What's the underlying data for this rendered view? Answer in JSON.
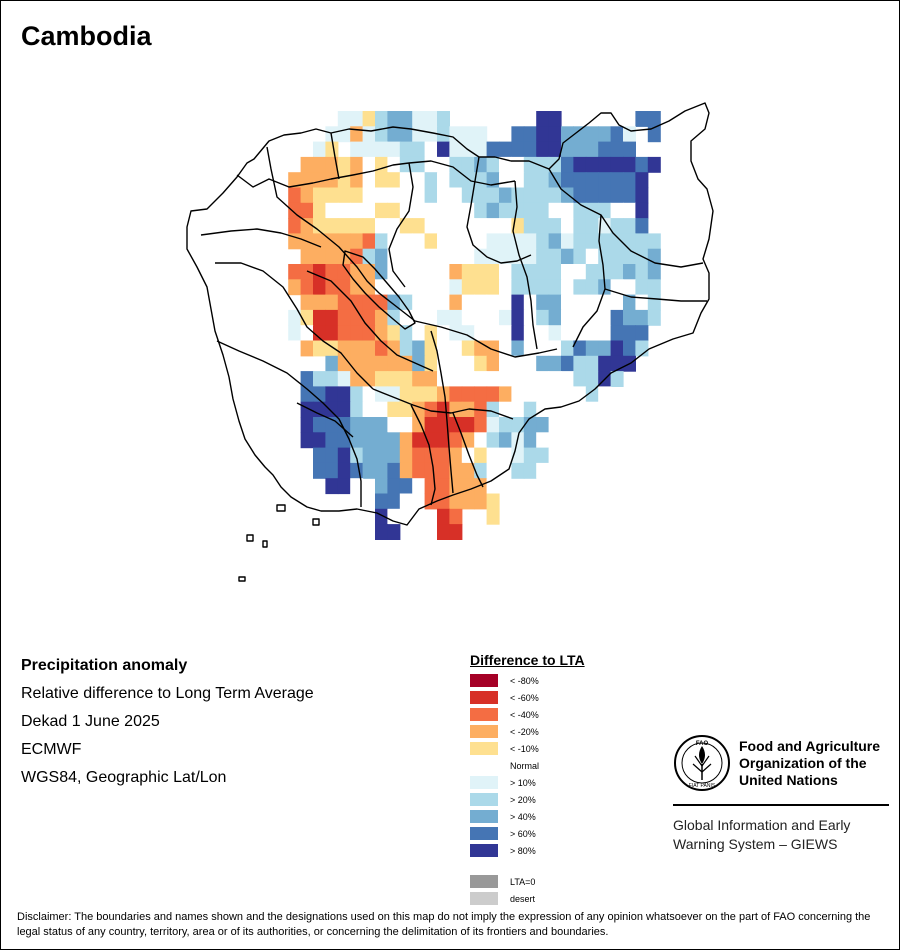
{
  "title": "Cambodia",
  "info": {
    "heading": "Precipitation anomaly",
    "line1": "Relative difference to Long Term Average",
    "line2": "Dekad 1 June 2025",
    "line3": "ECMWF",
    "line4": "WGS84, Geographic Lat/Lon"
  },
  "legend": {
    "title": "Difference to LTA",
    "items": [
      {
        "label": "< -80%",
        "color": "#a50026"
      },
      {
        "label": "< -60%",
        "color": "#d73027"
      },
      {
        "label": "< -40%",
        "color": "#f46d43"
      },
      {
        "label": "< -20%",
        "color": "#fdae61"
      },
      {
        "label": "< -10%",
        "color": "#fee090"
      },
      {
        "label": "Normal",
        "color": "#ffffff"
      },
      {
        "label": "> 10%",
        "color": "#e0f3f8"
      },
      {
        "label": "> 20%",
        "color": "#abd9e9"
      },
      {
        "label": "> 40%",
        "color": "#74add1"
      },
      {
        "label": "> 60%",
        "color": "#4575b4"
      },
      {
        "label": "> 80%",
        "color": "#313695"
      }
    ],
    "extra": [
      {
        "label": "LTA=0",
        "color": "#999999"
      },
      {
        "label": "desert",
        "color": "#cccccc"
      }
    ]
  },
  "fao": {
    "org_line1": "Food and Agriculture",
    "org_line2": "Organization of the",
    "org_line3": "United Nations",
    "giews_line1": "Global Information and Early",
    "giews_line2": "Warning System – GIEWS",
    "logo_letters": "FAO",
    "logo_motto": "FIAT PANIS"
  },
  "disclaimer": "Disclaimer: The boundaries and names shown and the designations used on this map do not imply the expression of any opinion whatsoever on the part of FAO concerning the legal status of any country, territory, area or of its authorities, or concerning the delimitation of its frontiers and boundaries.",
  "map_legend_codes": "A=< -80% B=< -60% C=< -40% D=< -20% E=< -10% N=Normal F=> 10% G=> 20% H=> 40% I=> 60% J=> 80%",
  "grid": [
    "............FFEGHHFFG.......JJ......II",
    "...........FFDFGHHFFGFFF..IIJJHHHHIF.I",
    "..........FE.FFFFGGNJFFFIIIIJJHHHIII..",
    ".........DDDEDNENGGNNGGHGNNGGGIJJJJJIJ",
    "........DDDDEDNEENNGNGGGHNNGGHIIIIIIJ.",
    "........CDEEEENNNNNGNNGGGHGGGGHIIIIIJ.",
    "........CCENNNNEENNNNNNGHGGGGNNGGGNNJ.",
    "........CDEEEEENNEENNNNNNNEGGGNGGFGGI.",
    "........DDDDDDCGNNNENNNNFFFFGHFGGGGGGG",
    ".........DDDDCGHNNNNNNNFFFFFGGHGNGGGGH",
    "........CCBCCDDHNNNNNDEEENGGGGNNGGGHGH",
    "........DCBCCDDNNNNNNFEEENGGGGNGGHNNGG",
    ".........DDDCCCCHGNNNDNNNNJNHHNNNNNHNG",
    "........FEBBCCCDGNNNFFNNNFJNGHNNNNIHHG",
    "........FNBBCCCDEGNENFFNNNJNNFNNNNIII.",
    "........NDEEDDDCDGHENNEDDNHNNNGIHHJIG.",
    "...........HDDDDDDHENNNEDNNNHHIGGJJJ..",
    ".........IGGFDDEEEDDNNNNNNNNNNNGGJG...",
    ".........IIJJGNFFEEEDCCCCDNNNNNNGN....",
    ".........JJJJGNNEEDCBDDCGNNGNNNNNN....",
    ".........JIIIHHHNNDBBBBCFGGHHNNN......",
    ".........JJIIHHHHDBBBCDNGHFHNNNN......",
    "..........IIJGHHHDCCCDNENNFGGNNN......",
    "..........IIJIHHIDCCCDDGNNGGNN........",
    "...........JJN.HIINCCDDDN.............",
    ".............N.IIN.CCDDDE.............",
    "...............JN...BC..E.............",
    "...............JJ...BB................"
  ]
}
